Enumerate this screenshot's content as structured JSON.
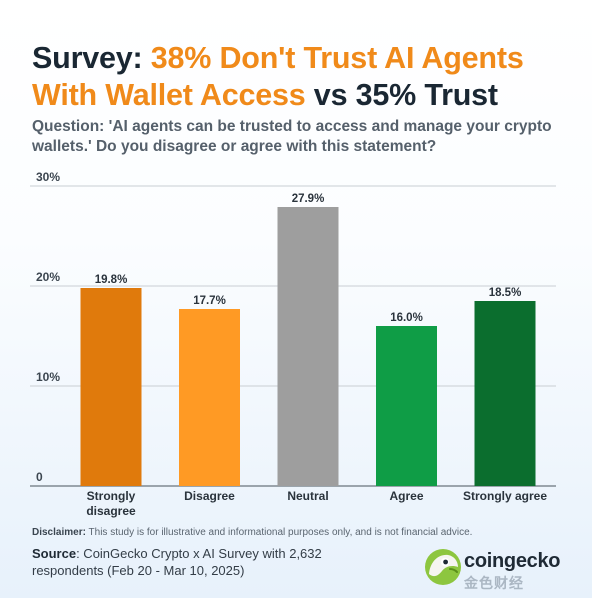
{
  "title": {
    "part1": "Survey: ",
    "part2": "38% Don't Trust AI Agents With Wallet Access",
    "part3": " vs 35% Trust"
  },
  "question": "Question: 'AI agents can be trusted to access and manage your crypto wallets.' Do you disagree or agree with this statement?",
  "chart_data": {
    "type": "bar",
    "title": "Survey: 38% Don't Trust AI Agents With Wallet Access vs 35% Trust",
    "categories": [
      "Strongly disagree",
      "Disagree",
      "Neutral",
      "Agree",
      "Strongly agree"
    ],
    "category_lines": [
      [
        "Strongly",
        "disagree"
      ],
      [
        "Disagree"
      ],
      [
        "Neutral"
      ],
      [
        "Agree"
      ],
      [
        "Strongly agree"
      ]
    ],
    "values": [
      19.8,
      17.7,
      27.9,
      16.0,
      18.5
    ],
    "value_labels": [
      "19.8%",
      "17.7%",
      "27.9%",
      "16.0%",
      "18.5%"
    ],
    "colors": [
      "#e07a0c",
      "#ff9a24",
      "#9e9e9e",
      "#0f9d46",
      "#0b6e2e"
    ],
    "ylim": [
      0,
      30
    ],
    "yticks": [
      0,
      10,
      20,
      30
    ],
    "ytick_labels": [
      "0",
      "10%",
      "20%",
      "30%"
    ],
    "grid": true,
    "xlabel": "",
    "ylabel": ""
  },
  "disclaimer": {
    "label": "Disclaimer:",
    "text": " This study is for illustrative and informational purposes only, and is not financial advice."
  },
  "source": {
    "label": "Source",
    "text": ": CoinGecko Crypto x AI Survey with 2,632 respondents (Feb 20 - Mar 10, 2025)"
  },
  "brand": {
    "name": "coingecko",
    "watermark": "金色财经",
    "logo_icon": "gecko-logo-icon"
  }
}
